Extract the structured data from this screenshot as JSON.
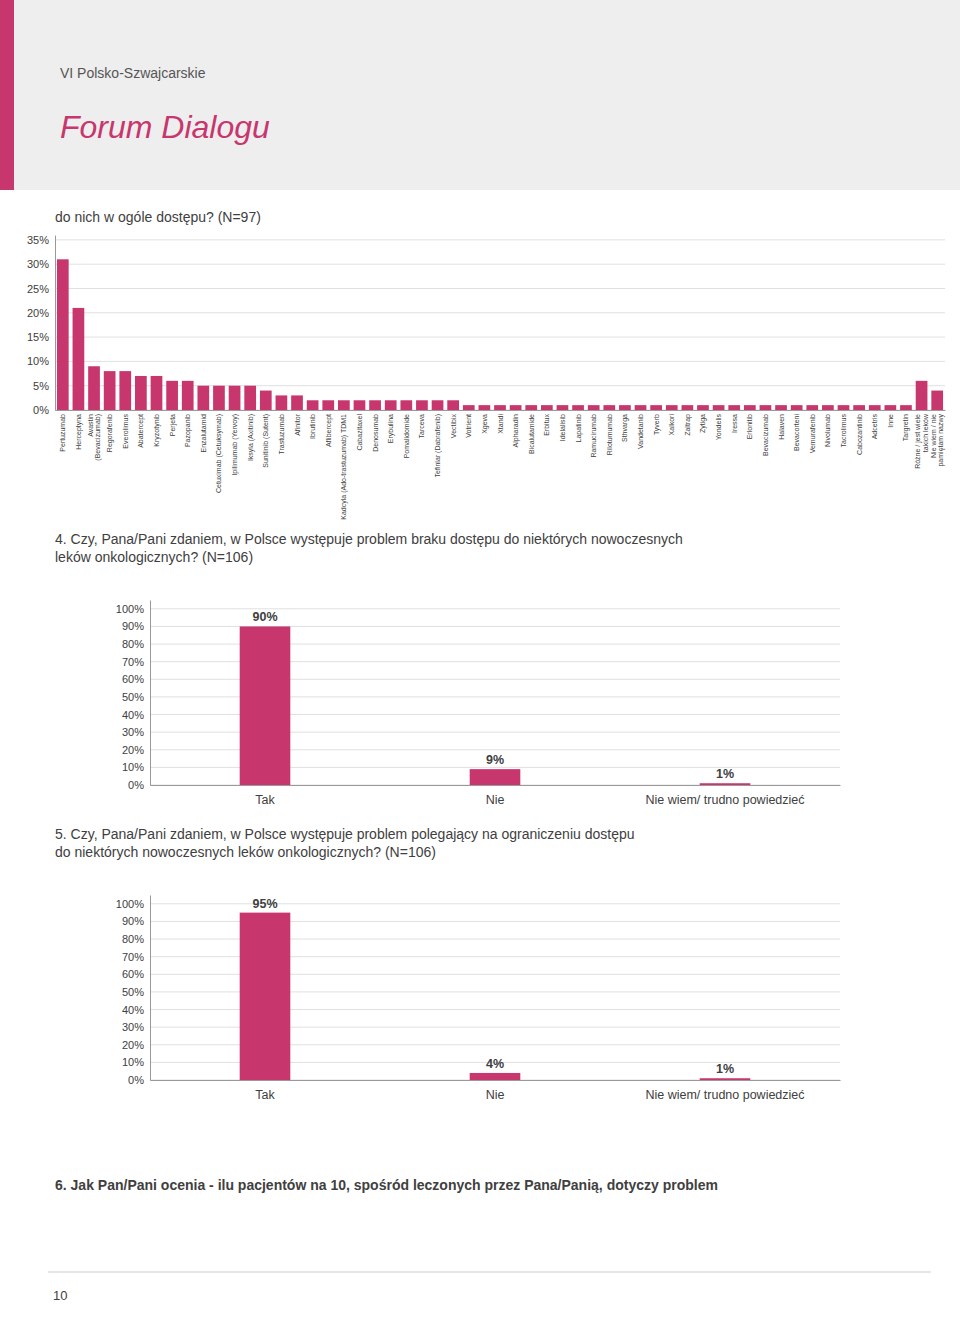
{
  "title": "Forum Dialogu",
  "subtitle": "VI Polsko-Szwajcarskie",
  "annotations": [
    "6.  Jak Pan/Pani ocenia - ilu pacjentów na 10, spośród leczonych przez Pana/Panią, dotyczy problem",
    "10"
  ],
  "chart_data": [
    {
      "type": "bar",
      "title": "do nich w ogóle dostępu? (N=97)",
      "categories": [
        "Pertuzumab",
        "Herceptyna",
        "Avastin\n(Bevacizumab)",
        "Regorafenib",
        "Everolimus",
        "Abatercept",
        "Kryzotynib",
        "Perjeta",
        "Pazopanib",
        "Enzalutamid",
        "Cetuximab (Cetuksymab)",
        "Ipilimumab (Yervoy)",
        "Iksyla (Axitinib)",
        "Sunitinib (Sutent)",
        "Trastuzumab",
        "Afinitor",
        "Ibrutinib",
        "Aflibercept",
        "Kadcyla (Ado-trastuzumab) TDM1",
        "Cabazitaxel",
        "Denosumab",
        "Erybulina",
        "Pomalidomide",
        "Tarceva",
        "Tefinlar (Dabrafenib)",
        "Vectibix",
        "Votrient",
        "Xgeva",
        "Xtandi",
        "Alpharadin",
        "Bicalutamide",
        "Erbitux",
        "Idelalisib",
        "Lapatinib",
        "Ramucirumab",
        "Rilotumumab",
        "Sthvarga",
        "Vandetanib",
        "Tyverb",
        "Xalkori",
        "Zaltrap",
        "Zytiga",
        "Yondelis",
        "Iressa",
        "Erlonitib",
        "Bevacizumab",
        "Halaven",
        "Bevacorteni",
        "Vemurafenib",
        "Nivolumab",
        "Tacrolimus",
        "Cabozantinib",
        "Adcetris",
        "Inne",
        "Targretin",
        "Różne / jest wiele\ntakich leków",
        "Nie wiem / nie\npamiętam nazwy"
      ],
      "values": [
        31,
        21,
        9,
        8,
        8,
        7,
        7,
        6,
        6,
        5,
        5,
        5,
        5,
        4,
        3,
        3,
        2,
        2,
        2,
        2,
        2,
        2,
        2,
        2,
        2,
        2,
        1,
        1,
        1,
        1,
        1,
        1,
        1,
        1,
        1,
        1,
        1,
        1,
        1,
        1,
        1,
        1,
        1,
        1,
        1,
        1,
        1,
        1,
        1,
        1,
        1,
        1,
        1,
        1,
        1,
        6,
        4
      ],
      "color": "#c8366e",
      "ylim": [
        0,
        36
      ],
      "yticks": [
        {
          "value": 0,
          "label": "0%"
        },
        {
          "value": 5,
          "label": "5%"
        },
        {
          "value": 10,
          "label": "10%"
        },
        {
          "value": 15,
          "label": "15%"
        },
        {
          "value": 20,
          "label": "20%"
        },
        {
          "value": 25,
          "label": "25%"
        },
        {
          "value": 30,
          "label": "30%"
        },
        {
          "value": 35,
          "label": "35%"
        }
      ],
      "grid": true
    },
    {
      "type": "bar",
      "title": "4.  Czy, Pana/Pani zdaniem, w Polsce występuje problem braku dostępu do niektórych nowoczesnych\nleków onkologicznych? (N=106)",
      "categories": [
        "Tak",
        "Nie",
        "Nie wiem/ trudno powiedzieć"
      ],
      "values": [
        90,
        9,
        1
      ],
      "value_labels": [
        "90%",
        "9%",
        "1%"
      ],
      "data_labels": true,
      "color": "#c8366e",
      "ylim": [
        0,
        105
      ],
      "yticks": [
        {
          "value": 0,
          "label": "0%"
        },
        {
          "value": 10,
          "label": "10%"
        },
        {
          "value": 20,
          "label": "20%"
        },
        {
          "value": 30,
          "label": "30%"
        },
        {
          "value": 40,
          "label": "40%"
        },
        {
          "value": 50,
          "label": "50%"
        },
        {
          "value": 60,
          "label": "60%"
        },
        {
          "value": 70,
          "label": "70%"
        },
        {
          "value": 80,
          "label": "80%"
        },
        {
          "value": 90,
          "label": "90%"
        },
        {
          "value": 100,
          "label": "100%"
        }
      ],
      "grid": true
    },
    {
      "type": "bar",
      "title": "5.  Czy, Pana/Pani zdaniem, w Polsce występuje problem polegający na ograniczeniu dostępu\ndo niektórych nowoczesnych leków onkologicznych? (N=106)",
      "categories": [
        "Tak",
        "Nie",
        "Nie wiem/ trudno powiedzieć"
      ],
      "values": [
        95,
        4,
        1
      ],
      "value_labels": [
        "95%",
        "4%",
        "1%"
      ],
      "data_labels": true,
      "color": "#c8366e",
      "ylim": [
        0,
        105
      ],
      "yticks": [
        {
          "value": 0,
          "label": "0%"
        },
        {
          "value": 10,
          "label": "10%"
        },
        {
          "value": 20,
          "label": "20%"
        },
        {
          "value": 30,
          "label": "30%"
        },
        {
          "value": 40,
          "label": "40%"
        },
        {
          "value": 50,
          "label": "50%"
        },
        {
          "value": 60,
          "label": "60%"
        },
        {
          "value": 70,
          "label": "70%"
        },
        {
          "value": 80,
          "label": "80%"
        },
        {
          "value": 90,
          "label": "90%"
        },
        {
          "value": 100,
          "label": "100%"
        }
      ],
      "grid": true
    }
  ]
}
